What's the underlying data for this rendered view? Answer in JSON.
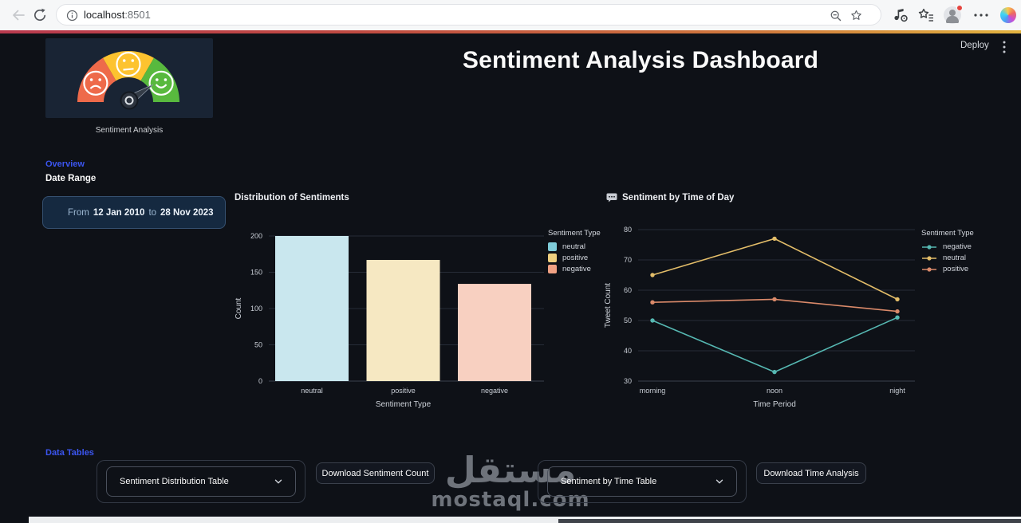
{
  "browser": {
    "url": {
      "host": "localhost",
      "port": ":8501"
    },
    "icons": {
      "back": "back-arrow-icon",
      "reload": "reload-icon",
      "site_info": "site-info-icon",
      "zoom_out": "zoom-out-magnifier-icon",
      "bookmark": "bookmark-star-icon",
      "extension": "music-extension-icon",
      "favorites_list": "favorites-list-icon",
      "profile": "profile-avatar",
      "menu": "browser-menu-ellipsis-icon",
      "copilot": "copilot-icon"
    }
  },
  "header": {
    "deploy_label": "Deploy"
  },
  "sidebar": {
    "image_caption": "Sentiment Analysis",
    "overview_label": "Overview",
    "date_range_label": "Date Range",
    "date_from_prefix": "From",
    "date_from": "12 Jan 2010",
    "date_to_connector": "to",
    "date_to": "28 Nov 2023"
  },
  "main": {
    "title": "Sentiment Analysis Dashboard"
  },
  "data_tables": {
    "header": "Data Tables",
    "expander_sentiment": "Sentiment Distribution Table",
    "download_sentiment": "Download Sentiment Count",
    "expander_time": "Sentiment by Time Table",
    "download_time": "Download Time Analysis"
  },
  "watermark": {
    "logo_text": "مستقل",
    "domain": "mostaql.com"
  },
  "chart_data": [
    {
      "type": "bar",
      "title": "Distribution of Sentiments",
      "categories": [
        "neutral",
        "positive",
        "negative"
      ],
      "values": [
        200,
        167,
        134
      ],
      "bar_colors": [
        "#c9e7ee",
        "#f6e8c2",
        "#f8d0c1"
      ],
      "legend_title": "Sentiment Type",
      "legend": [
        {
          "label": "neutral",
          "color": "#7fccd9"
        },
        {
          "label": "positive",
          "color": "#eecf7f"
        },
        {
          "label": "negative",
          "color": "#f0a183"
        }
      ],
      "xlabel": "Sentiment Type",
      "ylabel": "Count",
      "ylim": [
        0,
        200
      ],
      "yticks": [
        0,
        50,
        100,
        150,
        200
      ],
      "grid": true,
      "legend_position": "right"
    },
    {
      "type": "line",
      "title": "Sentiment by Time of Day",
      "title_icon": "speech-balloon-icon",
      "x": [
        "morning",
        "noon",
        "night"
      ],
      "series": [
        {
          "name": "negative",
          "color": "#56b8b2",
          "values": [
            50,
            33,
            51
          ]
        },
        {
          "name": "neutral",
          "color": "#e3bd69",
          "values": [
            65,
            77,
            57
          ]
        },
        {
          "name": "positive",
          "color": "#db8a6a",
          "values": [
            56,
            57,
            53
          ]
        }
      ],
      "legend_title": "Sentiment Type",
      "xlabel": "Time Period",
      "ylabel": "Tweet Count",
      "ylim": [
        30,
        80
      ],
      "yticks": [
        30,
        40,
        50,
        60,
        70,
        80
      ],
      "grid": true,
      "legend_position": "right"
    }
  ]
}
